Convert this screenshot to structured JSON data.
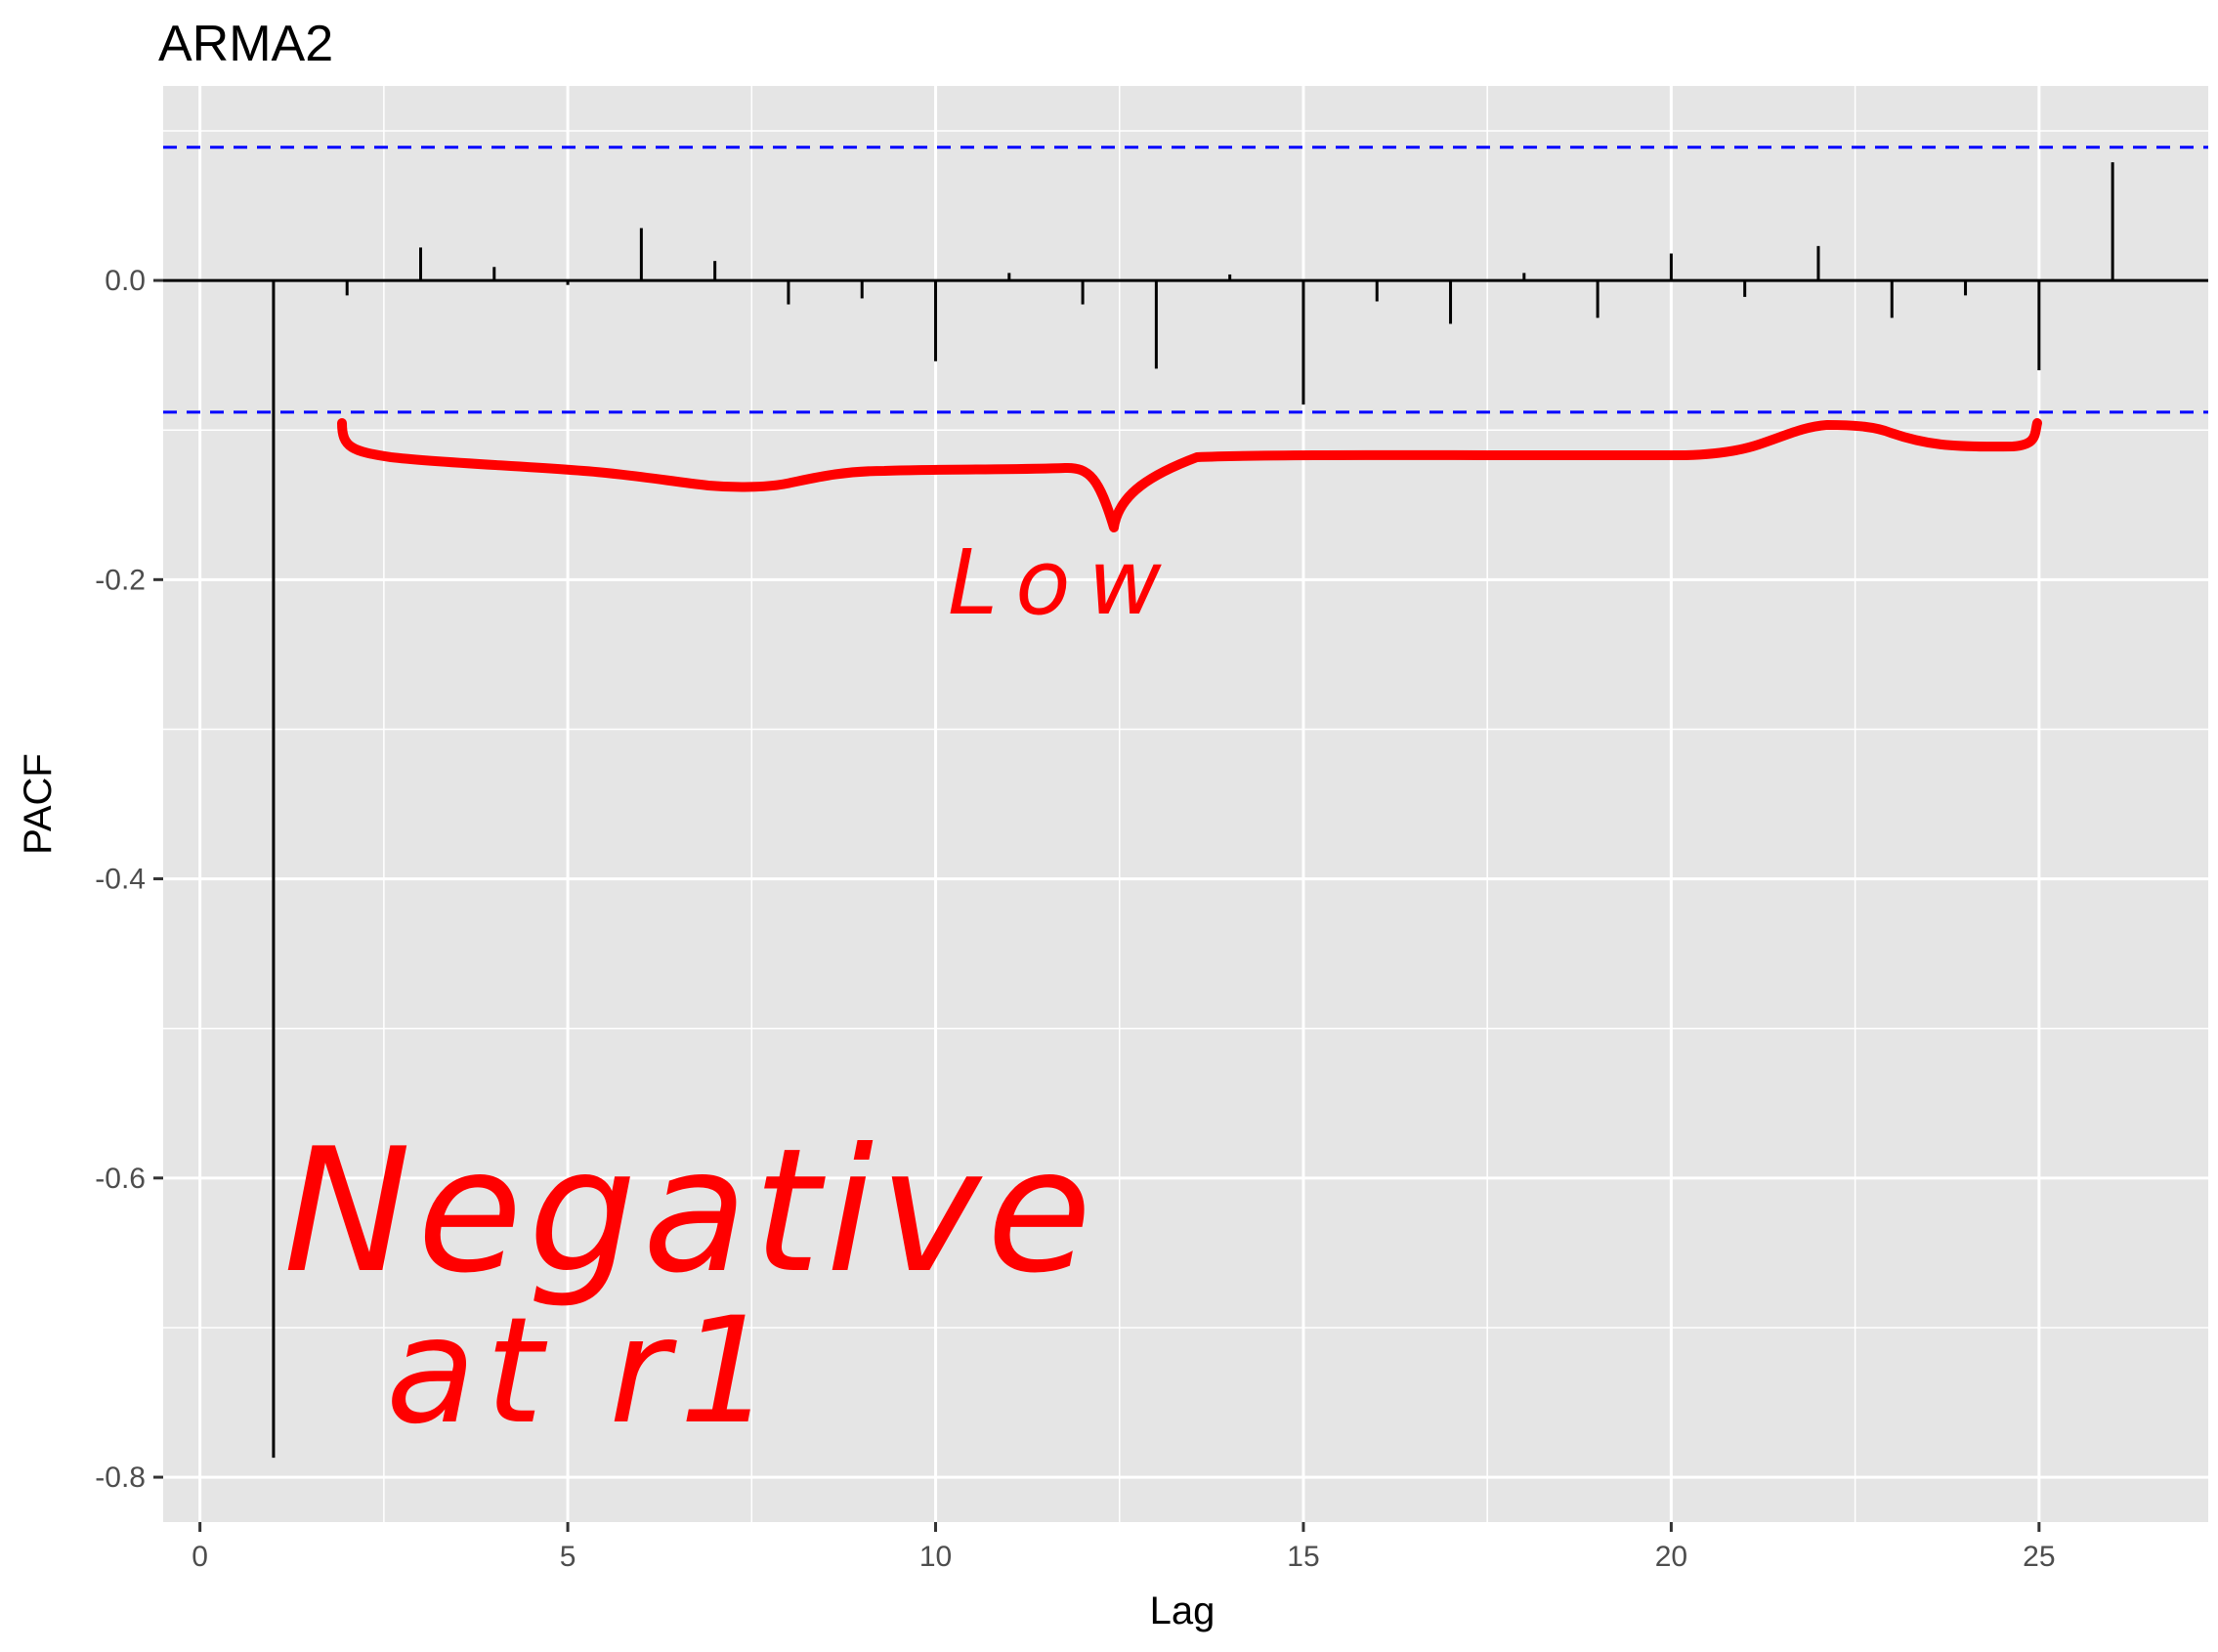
{
  "chart_data": {
    "type": "bar",
    "title": "ARMA2",
    "xlabel": "Lag",
    "ylabel": "PACF",
    "xlim": [
      -0.5,
      27.3
    ],
    "ylim": [
      -0.83,
      0.13
    ],
    "xticks": [
      0,
      5,
      10,
      15,
      20,
      25
    ],
    "xtick_labels": [
      "0",
      "5",
      "10",
      "15",
      "20",
      "25"
    ],
    "yticks": [
      0.0,
      -0.2,
      -0.4,
      -0.6,
      -0.8
    ],
    "ytick_labels": [
      "0.0",
      "-0.2",
      "-0.4",
      "-0.6",
      "-0.8"
    ],
    "grid": true,
    "colors": {
      "panel": "#e5e5e5",
      "grid": "#ffffff",
      "bar": "#000000",
      "ci": "#0000ff",
      "annotation": "#ff0000"
    },
    "confidence_bounds": [
      0.089,
      -0.088
    ],
    "x": [
      1,
      2,
      3,
      4,
      5,
      6,
      7,
      8,
      9,
      10,
      11,
      12,
      13,
      14,
      15,
      16,
      17,
      18,
      19,
      20,
      21,
      22,
      23,
      24,
      25,
      26
    ],
    "values": [
      -0.787,
      -0.01,
      0.022,
      0.009,
      -0.003,
      0.035,
      0.013,
      -0.016,
      -0.012,
      -0.054,
      0.005,
      -0.016,
      -0.059,
      0.004,
      -0.083,
      -0.014,
      -0.029,
      0.005,
      -0.025,
      0.018,
      -0.011,
      0.023,
      -0.025,
      -0.01,
      -0.06,
      0.079
    ],
    "annotations": [
      {
        "text": "Low"
      },
      {
        "text": "Negative"
      },
      {
        "text": "at r1"
      }
    ]
  }
}
